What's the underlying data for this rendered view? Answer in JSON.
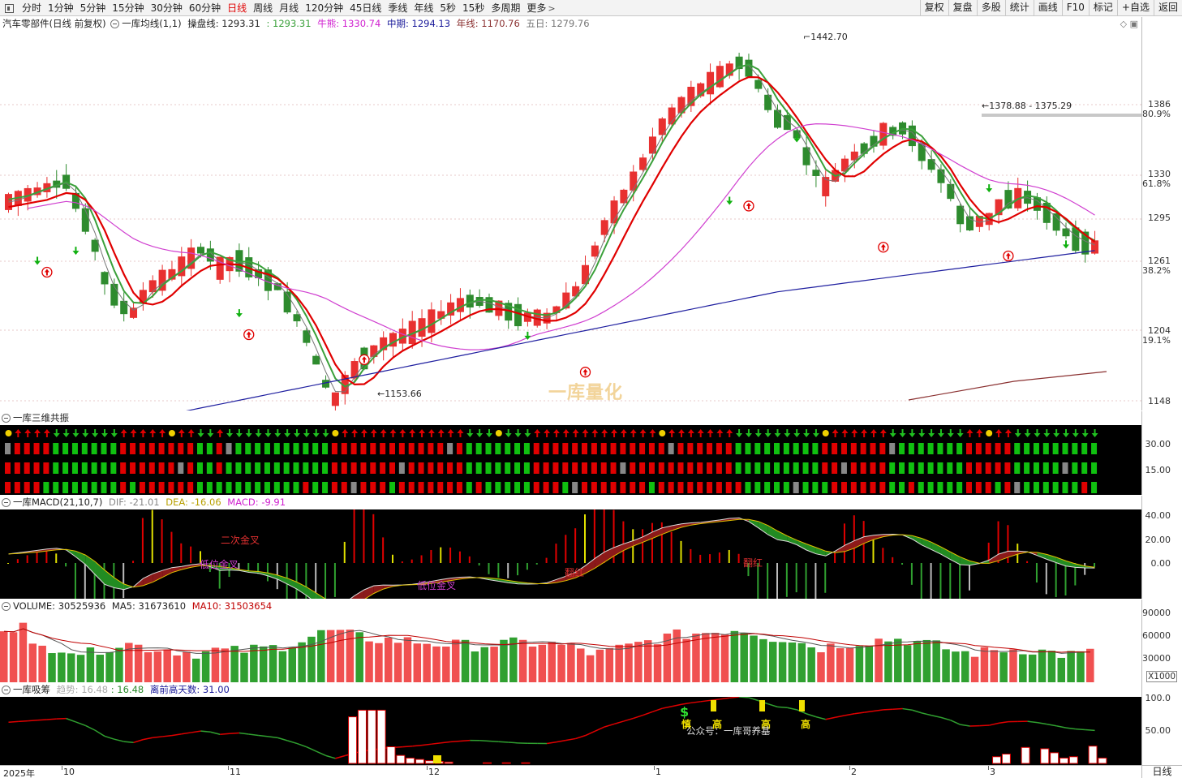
{
  "toolbar": {
    "periods": [
      "分时",
      "1分钟",
      "5分钟",
      "15分钟",
      "30分钟",
      "60分钟",
      "日线",
      "周线",
      "月线",
      "120分钟",
      "45日线",
      "季线",
      "年线",
      "5秒",
      "15秒",
      "多周期",
      "更多"
    ],
    "active_period": "日线",
    "right_buttons": [
      "复权",
      "复盘",
      "多股",
      "统计",
      "画线",
      "F10",
      "标记",
      "+自选",
      "返回"
    ]
  },
  "main": {
    "stock_name": "汽车零部件(日线 前复权)",
    "indicator": "一库均线(1,1)",
    "caopan_label": "操盘线:",
    "caopan_value": "1293.31",
    "green_value": ": 1293.31",
    "niuxiong_label": "牛熊:",
    "niuxiong_value": "1330.74",
    "zhongqi_label": "中期:",
    "zhongqi_value": "1294.13",
    "nianxian_label": "年线:",
    "nianxian_value": "1170.76",
    "wuri_label": "五日:",
    "wuri_value": "1279.76",
    "high_label": "1442.70",
    "low_label": "1153.66",
    "range_label": "1378.88 - 1375.29",
    "watermark": "一库量化",
    "axis": [
      "1386",
      "80.9%",
      "1330",
      "61.8%",
      "1295",
      "1261",
      "38.2%",
      "1204",
      "19.1%",
      "1148"
    ]
  },
  "sanwei": {
    "title": "一库三维共振",
    "axis": [
      "30.00",
      "15.00"
    ]
  },
  "macd": {
    "title": "一库MACD(21,10,7)",
    "dif_label": "DIF:",
    "dif_value": "-21.01",
    "dea_label": "DEA:",
    "dea_value": "-16.06",
    "macd_label": "MACD:",
    "macd_value": "-9.91",
    "annotations": [
      "二次金叉",
      "低位金叉",
      "低位金叉",
      "翻红",
      "翻红"
    ],
    "axis": [
      "40.00",
      "20.00",
      "0.00"
    ]
  },
  "volume": {
    "title": "VOLUME:",
    "value": "30525936",
    "ma5_label": "MA5:",
    "ma5_value": "31673610",
    "ma10_label": "MA10:",
    "ma10_value": "31503654",
    "axis": [
      "90000",
      "60000",
      "30000"
    ],
    "unit": "X1000"
  },
  "xichou": {
    "title": "一库吸筹",
    "trend_label": "趋势:",
    "trend_value": "16.48",
    "colon_value": ": 16.48",
    "days_label": "离前高天数:",
    "days_value": "31.00",
    "annotations": [
      "$",
      "慎",
      "高",
      "高",
      "高"
    ],
    "gzh": "公众号：一库哥养基",
    "axis": [
      "100.0",
      "50.00"
    ]
  },
  "bottom": {
    "dates": [
      "2025年",
      "10",
      "11",
      "12",
      "1",
      "2",
      "3"
    ],
    "period_label": "日线"
  },
  "colors": {
    "up": "#e83030",
    "down": "#2e8b2e",
    "ma_red": "#e00000",
    "ma_green": "#3aa03a",
    "ma_magenta": "#d040d0",
    "ma_blue": "#2020a0"
  }
}
